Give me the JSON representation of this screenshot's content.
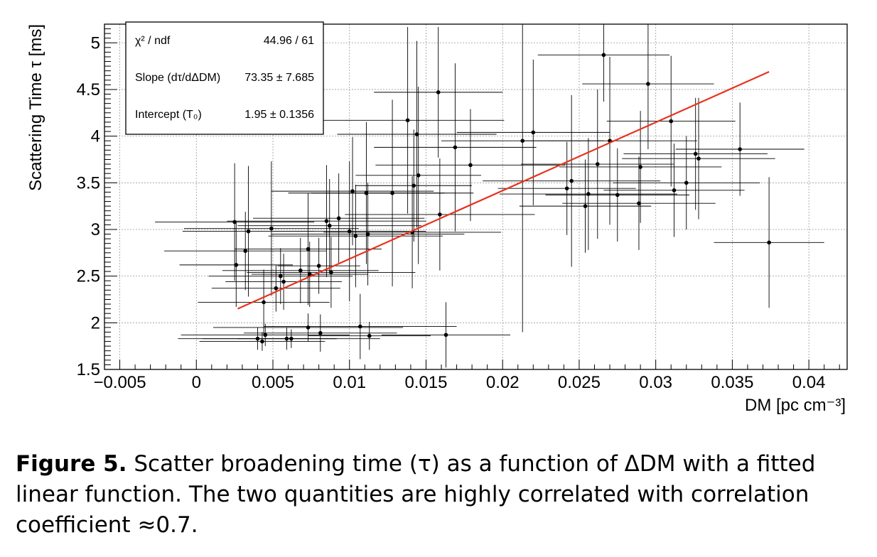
{
  "figure": {
    "label": "Figure 5.",
    "caption": "Scatter broadening time (τ) as a function of ΔDM with a fitted linear function. The two quantities are highly correlated with correlation coefficient ≈0.7."
  },
  "stats_box": {
    "rows": [
      {
        "label": "χ² / ndf",
        "value": "44.96 / 61"
      },
      {
        "label": "Slope (dτ/dΔDM)",
        "value": "73.35 ± 7.685"
      },
      {
        "label": "Intercept (T₀)",
        "value": "1.95 ± 0.1356"
      }
    ]
  },
  "chart_data": {
    "type": "scatter",
    "title": "",
    "xlabel": "DM [pc cm⁻³]",
    "ylabel": "Scattering Time τ [ms]",
    "xlim": [
      -0.006,
      0.0425
    ],
    "ylim": [
      1.5,
      5.2
    ],
    "x_ticks": [
      -0.005,
      0,
      0.005,
      0.01,
      0.015,
      0.02,
      0.025,
      0.03,
      0.035,
      0.04
    ],
    "x_tick_labels": [
      "−0.005",
      "0",
      "0.005",
      "0.01",
      "0.015",
      "0.02",
      "0.025",
      "0.03",
      "0.035",
      "0.04"
    ],
    "y_ticks": [
      1.5,
      2,
      2.5,
      3,
      3.5,
      4,
      4.5,
      5
    ],
    "y_tick_labels": [
      "1.5",
      "2",
      "2.5",
      "3",
      "3.5",
      "4",
      "4.5",
      "5"
    ],
    "grid": true,
    "colors": {
      "points": "#000000",
      "fit": "#e8321e"
    },
    "fit_line": {
      "x": [
        0.0027,
        0.0374
      ],
      "y": [
        2.15,
        4.69
      ]
    },
    "points": [
      {
        "x": 0.0025,
        "y": 3.08,
        "xerr": 0.0052,
        "yerr": 0.63
      },
      {
        "x": 0.0026,
        "y": 2.62,
        "xerr": 0.0037,
        "yerr": 0.45
      },
      {
        "x": 0.0032,
        "y": 2.77,
        "xerr": 0.0053,
        "yerr": 0.42
      },
      {
        "x": 0.0034,
        "y": 2.98,
        "xerr": 0.0043,
        "yerr": 0.7
      },
      {
        "x": 0.004,
        "y": 1.83,
        "xerr": 0.0052,
        "yerr": 0.12
      },
      {
        "x": 0.0043,
        "y": 1.8,
        "xerr": 0.0041,
        "yerr": 0.1
      },
      {
        "x": 0.0044,
        "y": 2.22,
        "xerr": 0.0043,
        "yerr": 0.35
      },
      {
        "x": 0.0045,
        "y": 1.87,
        "xerr": 0.0055,
        "yerr": 0.12
      },
      {
        "x": 0.0049,
        "y": 3.01,
        "xerr": 0.0057,
        "yerr": 0.72
      },
      {
        "x": 0.0052,
        "y": 2.37,
        "xerr": 0.0042,
        "yerr": 0.25
      },
      {
        "x": 0.0055,
        "y": 2.5,
        "xerr": 0.0047,
        "yerr": 0.3
      },
      {
        "x": 0.0057,
        "y": 2.44,
        "xerr": 0.0038,
        "yerr": 0.3
      },
      {
        "x": 0.0059,
        "y": 1.83,
        "xerr": 0.0032,
        "yerr": 0.12
      },
      {
        "x": 0.0062,
        "y": 1.83,
        "xerr": 0.0058,
        "yerr": 0.1
      },
      {
        "x": 0.0068,
        "y": 2.56,
        "xerr": 0.0051,
        "yerr": 0.35
      },
      {
        "x": 0.0073,
        "y": 1.95,
        "xerr": 0.0062,
        "yerr": 0.15
      },
      {
        "x": 0.0073,
        "y": 2.79,
        "xerr": 0.0048,
        "yerr": 0.6
      },
      {
        "x": 0.0074,
        "y": 2.52,
        "xerr": 0.0038,
        "yerr": 0.35
      },
      {
        "x": 0.008,
        "y": 2.61,
        "xerr": 0.0027,
        "yerr": 0.3
      },
      {
        "x": 0.0081,
        "y": 1.89,
        "xerr": 0.005,
        "yerr": 0.2
      },
      {
        "x": 0.0085,
        "y": 3.09,
        "xerr": 0.0065,
        "yerr": 0.6
      },
      {
        "x": 0.0087,
        "y": 3.04,
        "xerr": 0.006,
        "yerr": 0.5
      },
      {
        "x": 0.0088,
        "y": 2.54,
        "xerr": 0.0055,
        "yerr": 0.38
      },
      {
        "x": 0.0093,
        "y": 3.12,
        "xerr": 0.0056,
        "yerr": 0.48
      },
      {
        "x": 0.01,
        "y": 2.98,
        "xerr": 0.005,
        "yerr": 0.75
      },
      {
        "x": 0.0102,
        "y": 3.41,
        "xerr": 0.0053,
        "yerr": 0.58
      },
      {
        "x": 0.0104,
        "y": 2.93,
        "xerr": 0.0057,
        "yerr": 0.55
      },
      {
        "x": 0.0107,
        "y": 1.96,
        "xerr": 0.0063,
        "yerr": 0.35
      },
      {
        "x": 0.0111,
        "y": 3.39,
        "xerr": 0.0051,
        "yerr": 0.76
      },
      {
        "x": 0.0112,
        "y": 2.95,
        "xerr": 0.0063,
        "yerr": 0.55
      },
      {
        "x": 0.0113,
        "y": 1.86,
        "xerr": 0.004,
        "yerr": 0.15
      },
      {
        "x": 0.0128,
        "y": 3.39,
        "xerr": 0.0053,
        "yerr": 1.0
      },
      {
        "x": 0.0138,
        "y": 4.17,
        "xerr": 0.0063,
        "yerr": 1.0
      },
      {
        "x": 0.0141,
        "y": 2.97,
        "xerr": 0.0058,
        "yerr": 0.6
      },
      {
        "x": 0.0142,
        "y": 3.47,
        "xerr": 0.0038,
        "yerr": 0.6
      },
      {
        "x": 0.0144,
        "y": 4.02,
        "xerr": 0.0052,
        "yerr": 1.0
      },
      {
        "x": 0.0145,
        "y": 3.58,
        "xerr": 0.0041,
        "yerr": 0.95
      },
      {
        "x": 0.0158,
        "y": 4.47,
        "xerr": 0.0042,
        "yerr": 0.7
      },
      {
        "x": 0.0159,
        "y": 3.16,
        "xerr": 0.0062,
        "yerr": 0.6
      },
      {
        "x": 0.0163,
        "y": 1.87,
        "xerr": 0.0042,
        "yerr": 0.35
      },
      {
        "x": 0.0169,
        "y": 3.88,
        "xerr": 0.0053,
        "yerr": 0.9
      },
      {
        "x": 0.0179,
        "y": 3.69,
        "xerr": 0.0062,
        "yerr": 0.6
      },
      {
        "x": 0.0213,
        "y": 3.95,
        "xerr": 0.0053,
        "yerr": 2.05
      },
      {
        "x": 0.022,
        "y": 4.04,
        "xerr": 0.005,
        "yerr": 0.78
      },
      {
        "x": 0.0242,
        "y": 3.44,
        "xerr": 0.0045,
        "yerr": 0.5
      },
      {
        "x": 0.0245,
        "y": 3.52,
        "xerr": 0.0058,
        "yerr": 0.92
      },
      {
        "x": 0.0254,
        "y": 3.25,
        "xerr": 0.0043,
        "yerr": 0.5
      },
      {
        "x": 0.0256,
        "y": 3.38,
        "xerr": 0.0058,
        "yerr": 0.6
      },
      {
        "x": 0.0262,
        "y": 3.7,
        "xerr": 0.005,
        "yerr": 0.8
      },
      {
        "x": 0.0266,
        "y": 4.87,
        "xerr": 0.0043,
        "yerr": 0.5
      },
      {
        "x": 0.027,
        "y": 3.95,
        "xerr": 0.0057,
        "yerr": 0.9
      },
      {
        "x": 0.0275,
        "y": 3.37,
        "xerr": 0.0047,
        "yerr": 0.5
      },
      {
        "x": 0.0289,
        "y": 3.28,
        "xerr": 0.005,
        "yerr": 0.5
      },
      {
        "x": 0.029,
        "y": 3.67,
        "xerr": 0.0053,
        "yerr": 0.6
      },
      {
        "x": 0.0295,
        "y": 4.56,
        "xerr": 0.0043,
        "yerr": 0.7
      },
      {
        "x": 0.031,
        "y": 4.16,
        "xerr": 0.0042,
        "yerr": 0.7
      },
      {
        "x": 0.0312,
        "y": 3.42,
        "xerr": 0.0046,
        "yerr": 0.5
      },
      {
        "x": 0.032,
        "y": 3.5,
        "xerr": 0.0048,
        "yerr": 0.5
      },
      {
        "x": 0.0326,
        "y": 3.81,
        "xerr": 0.0047,
        "yerr": 0.6
      },
      {
        "x": 0.0328,
        "y": 3.76,
        "xerr": 0.005,
        "yerr": 0.65
      },
      {
        "x": 0.0355,
        "y": 3.86,
        "xerr": 0.0042,
        "yerr": 0.5
      },
      {
        "x": 0.0374,
        "y": 2.86,
        "xerr": 0.0036,
        "yerr": 0.7
      }
    ]
  }
}
